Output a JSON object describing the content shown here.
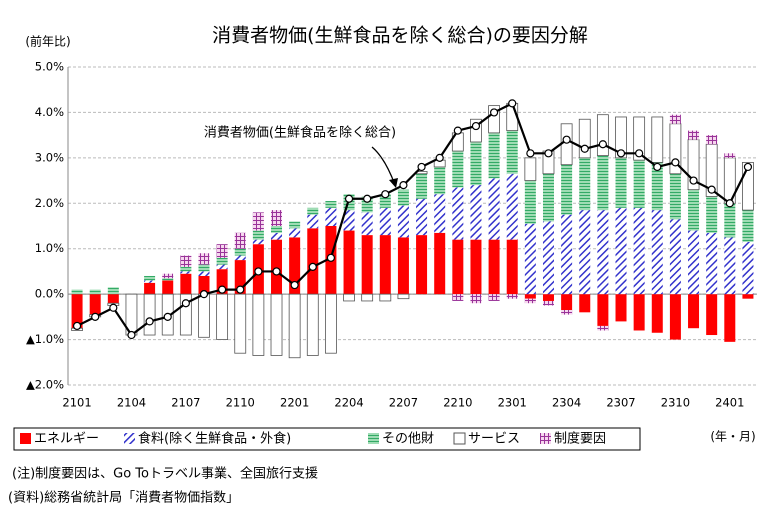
{
  "chart_data": {
    "type": "bar",
    "title": "消費者物価(生鮮食品を除く総合)の要因分解",
    "ylabel": "(前年比)",
    "xlabel": "(年・月)",
    "notes": [
      "(注)制度要因は、Go Toトラベル事業、全国旅行支援",
      "(資料)総務省統計局「消費者物価指数」"
    ],
    "categories": [
      "2101",
      null,
      null,
      "2104",
      null,
      null,
      "2107",
      null,
      null,
      "2110",
      null,
      null,
      "2201",
      null,
      null,
      "2204",
      null,
      null,
      "2207",
      null,
      null,
      "2210",
      null,
      null,
      "2301",
      null,
      null,
      "2304",
      null,
      null,
      "2307",
      null,
      null,
      "2310",
      null,
      null,
      "2401",
      null
    ],
    "ylim": [
      -2,
      5
    ],
    "yticks": [
      {
        "value": -2,
        "label": "▲2.0%"
      },
      {
        "value": -1,
        "label": "▲1.0%"
      },
      {
        "value": 0,
        "label": "0.0%"
      },
      {
        "value": 1,
        "label": "1.0%"
      },
      {
        "value": 2,
        "label": "2.0%"
      },
      {
        "value": 3,
        "label": "3.0%"
      },
      {
        "value": 4,
        "label": "4.0%"
      },
      {
        "value": 5,
        "label": "5.0%"
      }
    ],
    "grid": true,
    "stacked": true,
    "series": [
      {
        "name": "エネルギー",
        "color": "#ff0000",
        "values": [
          -0.75,
          -0.45,
          -0.2,
          0.0,
          0.25,
          0.3,
          0.45,
          0.4,
          0.55,
          0.75,
          1.1,
          1.2,
          1.25,
          1.45,
          1.5,
          1.4,
          1.3,
          1.3,
          1.25,
          1.3,
          1.35,
          1.2,
          1.2,
          1.2,
          1.2,
          -0.1,
          -0.15,
          -0.35,
          -0.4,
          -0.7,
          -0.6,
          -0.8,
          -0.85,
          -1.0,
          -0.75,
          -0.9,
          -1.05,
          -0.1
        ]
      },
      {
        "name": "食料(除く生鮮食品・外食)",
        "color": "#3333cc",
        "values": [
          0.0,
          0.0,
          0.0,
          0.0,
          0.05,
          0.0,
          0.05,
          0.1,
          0.1,
          0.1,
          0.1,
          0.15,
          0.2,
          0.3,
          0.4,
          0.45,
          0.5,
          0.6,
          0.7,
          0.8,
          0.85,
          1.15,
          1.2,
          1.35,
          1.45,
          1.55,
          1.6,
          1.75,
          1.85,
          1.85,
          1.9,
          1.9,
          1.85,
          1.65,
          1.4,
          1.35,
          1.25,
          1.15
        ]
      },
      {
        "name": "その他財",
        "color": "#33aa66",
        "values": [
          0.1,
          0.1,
          0.15,
          0.0,
          0.1,
          0.05,
          0.1,
          0.15,
          0.15,
          0.15,
          0.2,
          0.15,
          0.15,
          0.15,
          0.15,
          0.35,
          0.35,
          0.3,
          0.35,
          0.55,
          0.6,
          0.8,
          0.95,
          1.0,
          0.95,
          0.95,
          1.05,
          1.1,
          1.15,
          1.2,
          1.1,
          1.05,
          1.05,
          1.0,
          0.9,
          0.8,
          0.75,
          0.7
        ]
      },
      {
        "name": "サービス",
        "color": "#ffffff",
        "values": [
          -0.05,
          -0.05,
          -0.05,
          -0.9,
          -0.9,
          -0.9,
          -0.9,
          -0.95,
          -1.0,
          -1.3,
          -1.35,
          -1.35,
          -1.4,
          -1.35,
          -1.3,
          -0.15,
          -0.15,
          -0.15,
          -0.1,
          0.05,
          0.15,
          0.4,
          0.5,
          0.6,
          0.6,
          0.5,
          0.5,
          0.9,
          0.85,
          0.9,
          0.9,
          0.95,
          1.0,
          1.1,
          1.1,
          1.15,
          1.0,
          1.05
        ]
      },
      {
        "name": "制度要因",
        "color": "#993399",
        "values": [
          0,
          0,
          0,
          0,
          0,
          0.1,
          0.25,
          0.25,
          0.3,
          0.35,
          0.4,
          0.35,
          0,
          0,
          0,
          0,
          0,
          0,
          0,
          0,
          0,
          -0.15,
          -0.2,
          -0.15,
          -0.1,
          -0.1,
          -0.1,
          -0.1,
          0,
          -0.1,
          0,
          0,
          0,
          0.2,
          0.2,
          0.2,
          0.1,
          0
        ]
      },
      {
        "name": "消費者物価(生鮮食品を除く総合)",
        "type": "line",
        "color": "#000000",
        "values": [
          -0.7,
          -0.5,
          -0.3,
          -0.9,
          -0.6,
          -0.5,
          -0.2,
          0.0,
          0.1,
          0.1,
          0.5,
          0.5,
          0.2,
          0.6,
          0.8,
          2.1,
          2.1,
          2.2,
          2.4,
          2.8,
          3.0,
          3.6,
          3.7,
          4.0,
          4.2,
          3.1,
          3.1,
          3.4,
          3.2,
          3.3,
          3.1,
          3.1,
          2.8,
          2.9,
          2.5,
          2.3,
          2.0,
          2.8
        ]
      }
    ]
  }
}
